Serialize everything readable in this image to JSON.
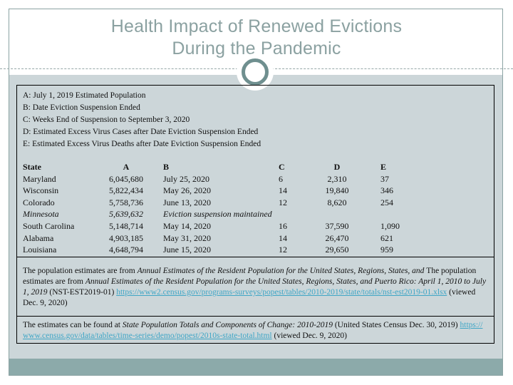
{
  "title": {
    "line1": "Health Impact of Renewed Evictions",
    "line2": "During the Pandemic"
  },
  "legend": {
    "items": [
      "A: July 1, 2019 Estimated Population",
      "B: Date Eviction Suspension Ended",
      "C: Weeks End of Suspension to September 3, 2020",
      "D: Estimated Excess Virus Cases after Date Eviction Suspension Ended",
      "E: Estimated Excess Virus Deaths after Date Eviction Suspension Ended"
    ]
  },
  "table": {
    "headers": {
      "state": "State",
      "a": "A",
      "b": "B",
      "c": "C",
      "d": "D",
      "e": "E"
    },
    "rows": [
      {
        "state": "Maryland",
        "a": "6,045,680",
        "b": "July 25, 2020",
        "c": "6",
        "d": "2,310",
        "e": "37"
      },
      {
        "state": "Wisconsin",
        "a": "5,822,434",
        "b": "May 26, 2020",
        "c": "14",
        "d": "19,840",
        "e": "346"
      },
      {
        "state": "Colorado",
        "a": "5,758,736",
        "b": "June 13, 2020",
        "c": "12",
        "d": "8,620",
        "e": "254"
      },
      {
        "state": "Minnesota",
        "a": "5,639,632",
        "b": "Eviction suspension maintained",
        "c": "",
        "d": "",
        "e": ""
      },
      {
        "state": "South Carolina",
        "a": "5,148,714",
        "b": "May 14, 2020",
        "c": "16",
        "d": "37,590",
        "e": "1,090"
      },
      {
        "state": "Alabama",
        "a": "4,903,185",
        "b": "May 31, 2020",
        "c": "14",
        "d": "26,470",
        "e": "621"
      },
      {
        "state": "Louisiana",
        "a": "4,648,794",
        "b": "June 15, 2020",
        "c": "12",
        "d": "29,650",
        "e": "959"
      }
    ]
  },
  "footnote1": {
    "text1": "The population estimates are from ",
    "italic1": "Annual Estimates of the Resident Population for the United States, Regions, States, and ",
    "text2": "The population estimates are from ",
    "italic2": "Annual Estimates of the Resident Population for the United States, Regions, States, and Puerto Rico: April 1, 2010 to July 1, 2019 ",
    "text3": "(NST-EST2019-01) ",
    "link": "https://www2.census.gov/programs-surveys/popest/tables/2010-2019/state/totals/nst-est2019-01.xlsx",
    "text4": " (viewed Dec. 9, 2020)"
  },
  "footnote2": {
    "text1": "The estimates can be found at ",
    "italic1": "State Population Totals and Components of Change: 2010-2019 ",
    "text2": "(United States Census Dec. 30, 2019) ",
    "link": "https://www.census.gov/data/tables/time-series/demo/popest/2010s-state-total.html",
    "text3": " (viewed Dec. 9, 2020)"
  },
  "colors": {
    "accent_sage": "#8ba1a1",
    "ring_teal": "#6f8f8f",
    "panel_bg": "#ccd6d9",
    "band_teal": "#8caaaa",
    "link": "#3fa6c6",
    "text": "#111111"
  }
}
